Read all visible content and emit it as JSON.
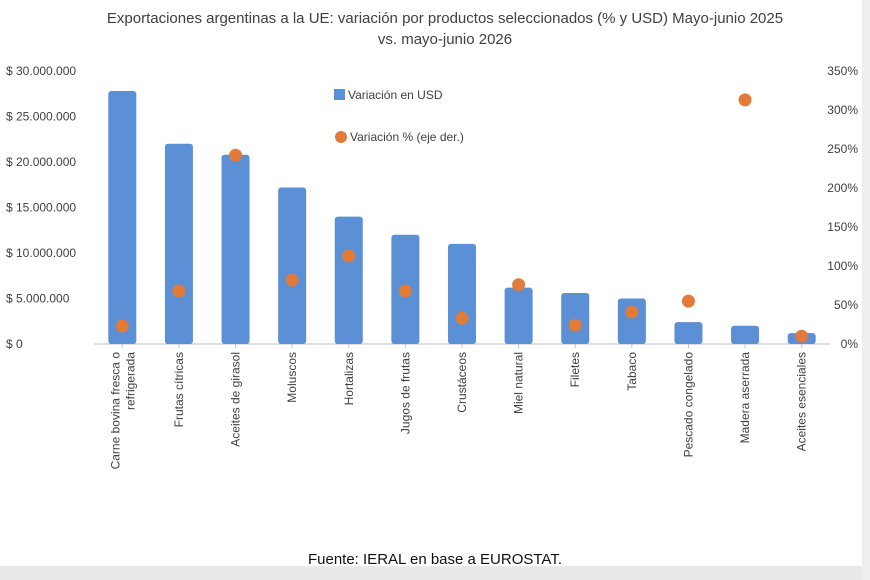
{
  "chart_data": {
    "type": "bar",
    "title_line1": "Exportaciones argentinas a la UE: variación por productos seleccionados (% y USD) Mayo-junio 2025",
    "title_line2": "vs. mayo-junio 2026",
    "categories": [
      [
        "Carne bovina fresca o",
        "refrigerada"
      ],
      [
        "Frutas cítricas"
      ],
      [
        "Aceites de girasol"
      ],
      [
        "Moluscos"
      ],
      [
        "Hortalizas"
      ],
      [
        "Jugos de frutas"
      ],
      [
        "Crustáceos"
      ],
      [
        "Miel natural"
      ],
      [
        "Filetes"
      ],
      [
        "Tabaco"
      ],
      [
        "Pescado congelado"
      ],
      [
        "Madera aserrada"
      ],
      [
        "Aceites esenciales"
      ]
    ],
    "series": [
      {
        "name": "Variación en USD",
        "kind": "bar",
        "axis": "left",
        "color": "#5b8fd6",
        "values": [
          27800000,
          22000000,
          20800000,
          17200000,
          14000000,
          12000000,
          11000000,
          6200000,
          5600000,
          5000000,
          2400000,
          2000000,
          1200000
        ]
      },
      {
        "name": "Variación % (eje der.)",
        "kind": "scatter",
        "axis": "right",
        "color": "#e07b39",
        "values": [
          23,
          68,
          242,
          82,
          113,
          68,
          33,
          76,
          24,
          41,
          55,
          313,
          10
        ]
      }
    ],
    "left_axis": {
      "ylim": [
        0,
        30000000
      ],
      "ticks": [
        "$ 0",
        "$ 5.000.000",
        "$ 10.000.000",
        "$ 15.000.000",
        "$ 20.000.000",
        "$ 25.000.000",
        "$ 30.000.000"
      ]
    },
    "right_axis": {
      "ylim": [
        0,
        350
      ],
      "ticks": [
        "0%",
        "50%",
        "100%",
        "150%",
        "200%",
        "250%",
        "300%",
        "350%"
      ]
    },
    "grid": false,
    "legend_position": "top-center"
  },
  "source": "Fuente: IERAL en base a EUROSTAT."
}
